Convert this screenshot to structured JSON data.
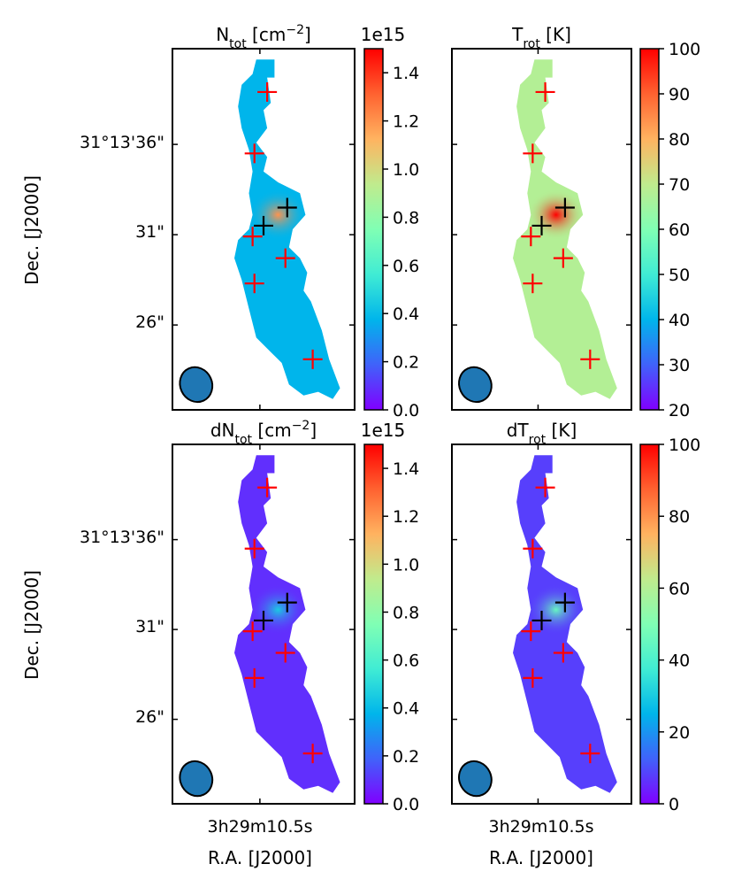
{
  "figure": {
    "ylabel": "Dec. [J2000]",
    "xlabel": "R.A. [J2000]",
    "x_tick_label": "3h29m10.5s",
    "y_tick_labels": [
      "31°13'36\"",
      "31\"",
      "26\""
    ]
  },
  "chart_data": [
    {
      "type": "heatmap",
      "title_main": "N",
      "title_sub": "tot",
      "title_unit": " [cm",
      "title_sup": "−2",
      "title_close": "]",
      "offset_text": "1e15",
      "colorbar": {
        "colormap": "rainbow",
        "range": [
          0.0,
          1.5
        ],
        "ticks": [
          "0.0",
          "0.2",
          "0.4",
          "0.6",
          "0.8",
          "1.0",
          "1.2",
          "1.4"
        ]
      },
      "peak_level": 0.8,
      "field_level": 0.25
    },
    {
      "type": "heatmap",
      "title_main": "T",
      "title_sub": "rot",
      "title_unit": " [K]",
      "colorbar": {
        "colormap": "rainbow",
        "range": [
          20,
          100
        ],
        "ticks": [
          "20",
          "30",
          "40",
          "50",
          "60",
          "70",
          "80",
          "90",
          "100"
        ]
      },
      "peak_level": 1.0,
      "field_level": 0.6
    },
    {
      "type": "heatmap",
      "title_main": "dN",
      "title_sub": "tot",
      "title_unit": " [cm",
      "title_sup": "−2",
      "title_close": "]",
      "offset_text": "1e15",
      "colorbar": {
        "colormap": "rainbow",
        "range": [
          0.0,
          1.5
        ],
        "ticks": [
          "0.0",
          "0.2",
          "0.4",
          "0.6",
          "0.8",
          "1.0",
          "1.2",
          "1.4"
        ]
      },
      "peak_level": 0.3,
      "field_level": 0.06
    },
    {
      "type": "heatmap",
      "title_main": "dT",
      "title_sub": "rot",
      "title_unit": " [K]",
      "colorbar": {
        "colormap": "rainbow",
        "range": [
          0,
          100
        ],
        "ticks": [
          "0",
          "20",
          "40",
          "60",
          "80",
          "100"
        ]
      },
      "peak_level": 0.45,
      "field_level": 0.08
    }
  ],
  "markers": {
    "red_count": 6,
    "black_count": 2,
    "red_color": "#ff0000",
    "black_color": "#000000"
  },
  "beam": {
    "fill": "#1f77b4",
    "edge": "#000000"
  }
}
